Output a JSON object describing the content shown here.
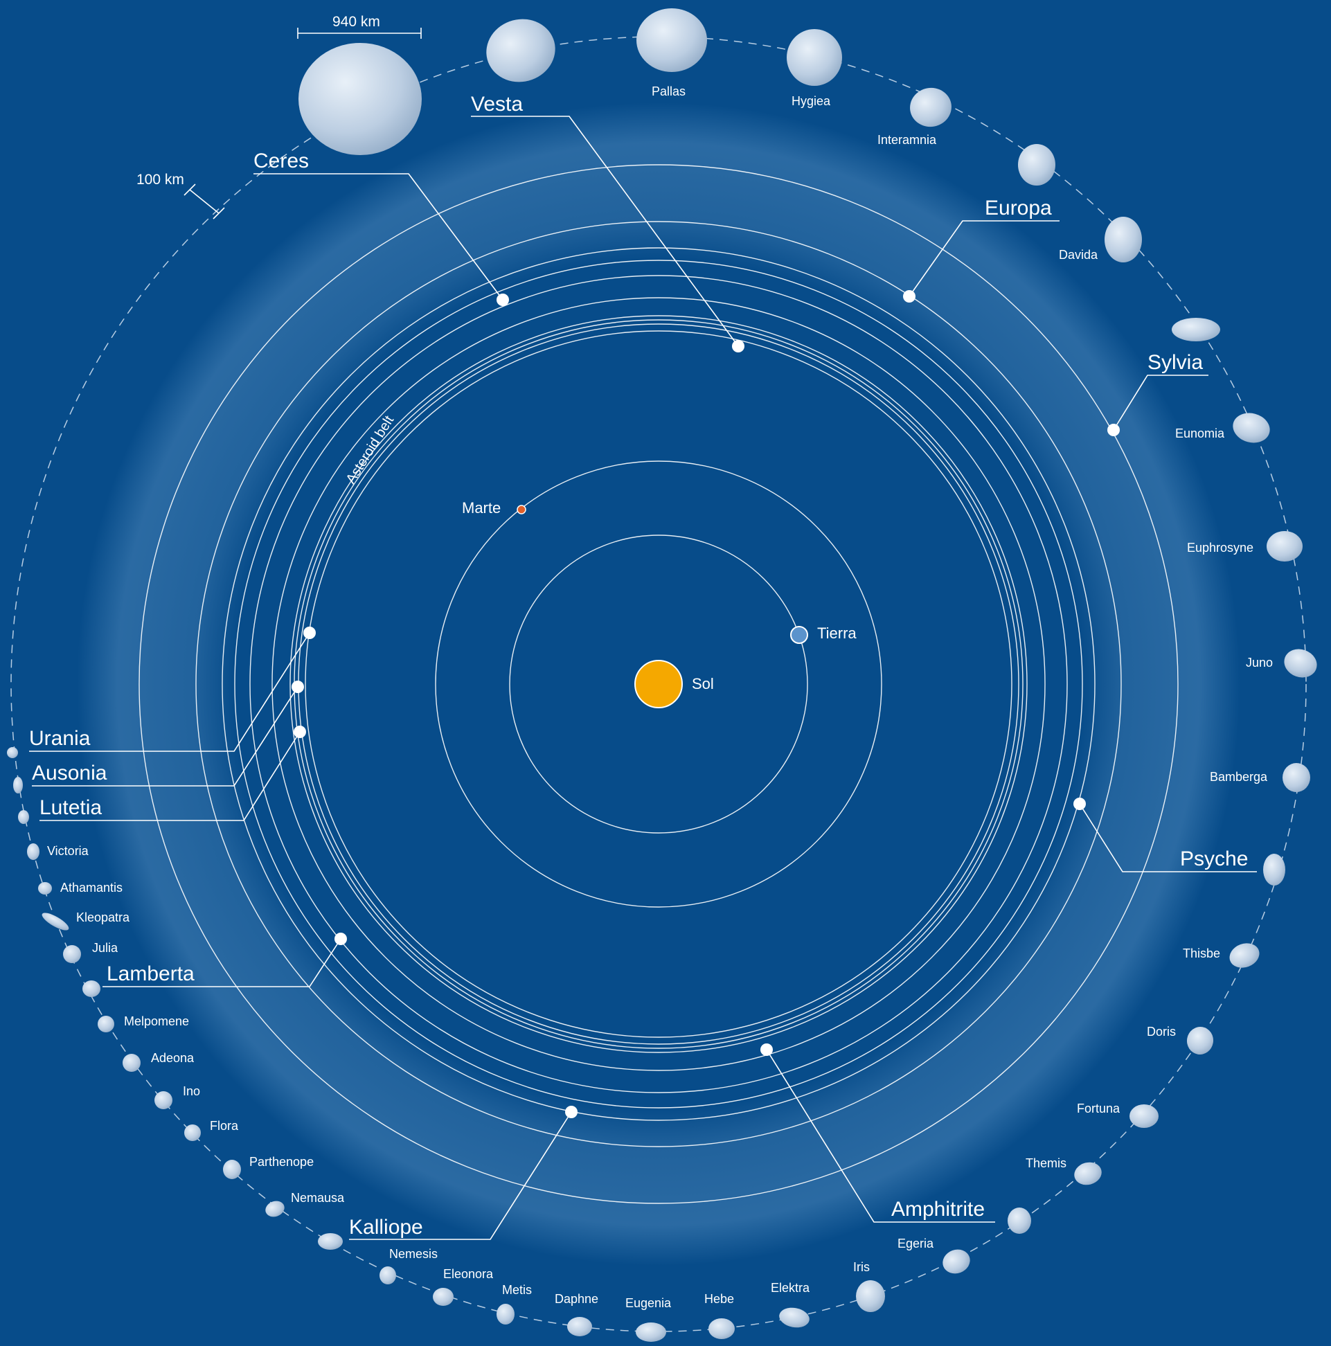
{
  "colors": {
    "background": "#074c8a",
    "belt_band": "#7fb2de",
    "orbit_line": "#ffffff",
    "sun": "#f5a800",
    "earth": "#5b93cc",
    "mars": "#e0602a",
    "asteroid_fill": "#c6d7e8"
  },
  "diagram": {
    "belt_label": "Asteroid belt",
    "sun_label": "Sol",
    "earth_label": "Tierra",
    "mars_label": "Marte",
    "scale_bar_large": "940 km",
    "scale_bar_small": "100 km"
  },
  "orbit_labels": [
    {
      "name": "Ceres"
    },
    {
      "name": "Vesta"
    },
    {
      "name": "Europa"
    },
    {
      "name": "Sylvia"
    },
    {
      "name": "Psyche"
    },
    {
      "name": "Amphitrite"
    },
    {
      "name": "Kalliope"
    },
    {
      "name": "Lamberta"
    },
    {
      "name": "Urania"
    },
    {
      "name": "Ausonia"
    },
    {
      "name": "Lutetia"
    }
  ],
  "asteroid_names": [
    "Pallas",
    "Hygiea",
    "Interamnia",
    "Davida",
    "Eunomia",
    "Euphrosyne",
    "Juno",
    "Bamberga",
    "Thisbe",
    "Doris",
    "Fortuna",
    "Themis",
    "Egeria",
    "Iris",
    "Elektra",
    "Hebe",
    "Eugenia",
    "Daphne",
    "Metis",
    "Eleonora",
    "Nemesis",
    "Nemausa",
    "Parthenope",
    "Flora",
    "Ino",
    "Adeona",
    "Melpomene",
    "Julia",
    "Kleopatra",
    "Athamantis",
    "Victoria"
  ]
}
